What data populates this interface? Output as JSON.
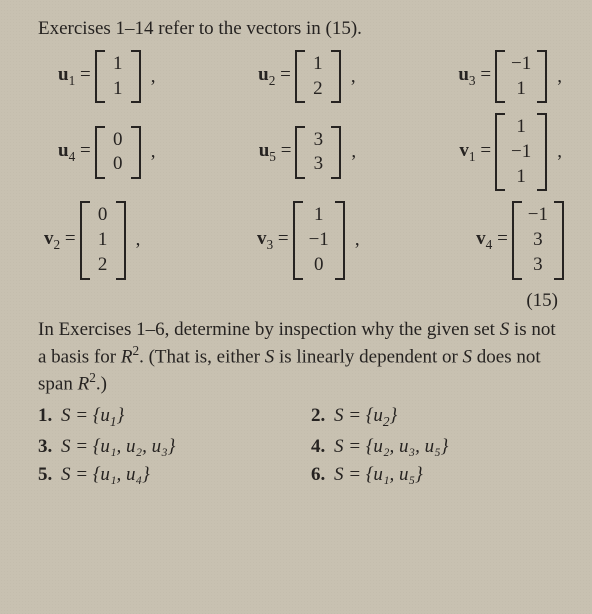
{
  "intro": "Exercises 1–14 refer to the vectors in (15).",
  "vectors": {
    "u1": {
      "label": "u",
      "sub": "1",
      "entries": [
        "1",
        "1"
      ]
    },
    "u2": {
      "label": "u",
      "sub": "2",
      "entries": [
        "1",
        "2"
      ]
    },
    "u3": {
      "label": "u",
      "sub": "3",
      "entries": [
        "−1",
        "1"
      ]
    },
    "u4": {
      "label": "u",
      "sub": "4",
      "entries": [
        "0",
        "0"
      ]
    },
    "u5": {
      "label": "u",
      "sub": "5",
      "entries": [
        "3",
        "3"
      ]
    },
    "v1": {
      "label": "v",
      "sub": "1",
      "entries": [
        "1",
        "−1",
        "1"
      ]
    },
    "v2": {
      "label": "v",
      "sub": "2",
      "entries": [
        "0",
        "1",
        "2"
      ]
    },
    "v3": {
      "label": "v",
      "sub": "3",
      "entries": [
        "1",
        "−1",
        "0"
      ]
    },
    "v4": {
      "label": "v",
      "sub": "4",
      "entries": [
        "−1",
        "3",
        "3"
      ]
    }
  },
  "eqnum": "(15)",
  "para": {
    "t1": "In Exercises 1–6, determine by inspection why the given set ",
    "S": "S",
    "t2": " is not a basis for ",
    "R": "R",
    "sup2": "2",
    "t3": ". (That is, either ",
    "t4": " is linearly dependent or ",
    "t5": " does not span ",
    "t6": ".)"
  },
  "exercises": [
    {
      "n": "1.",
      "body": "S = {u",
      "sub": "1",
      "tail": "}"
    },
    {
      "n": "2.",
      "body": "S = {u",
      "sub": "2",
      "tail": "}"
    },
    {
      "n": "3.",
      "body": "S = {u₁, u₂, u₃}",
      "sub": "",
      "tail": ""
    },
    {
      "n": "4.",
      "body": "S = {u₂, u₃, u₅}",
      "sub": "",
      "tail": ""
    },
    {
      "n": "5.",
      "body": "S = {u₁, u₄}",
      "sub": "",
      "tail": ""
    },
    {
      "n": "6.",
      "body": "S = {u₁, u₅}",
      "sub": "",
      "tail": ""
    }
  ],
  "eqsym": "=",
  "comma": ","
}
